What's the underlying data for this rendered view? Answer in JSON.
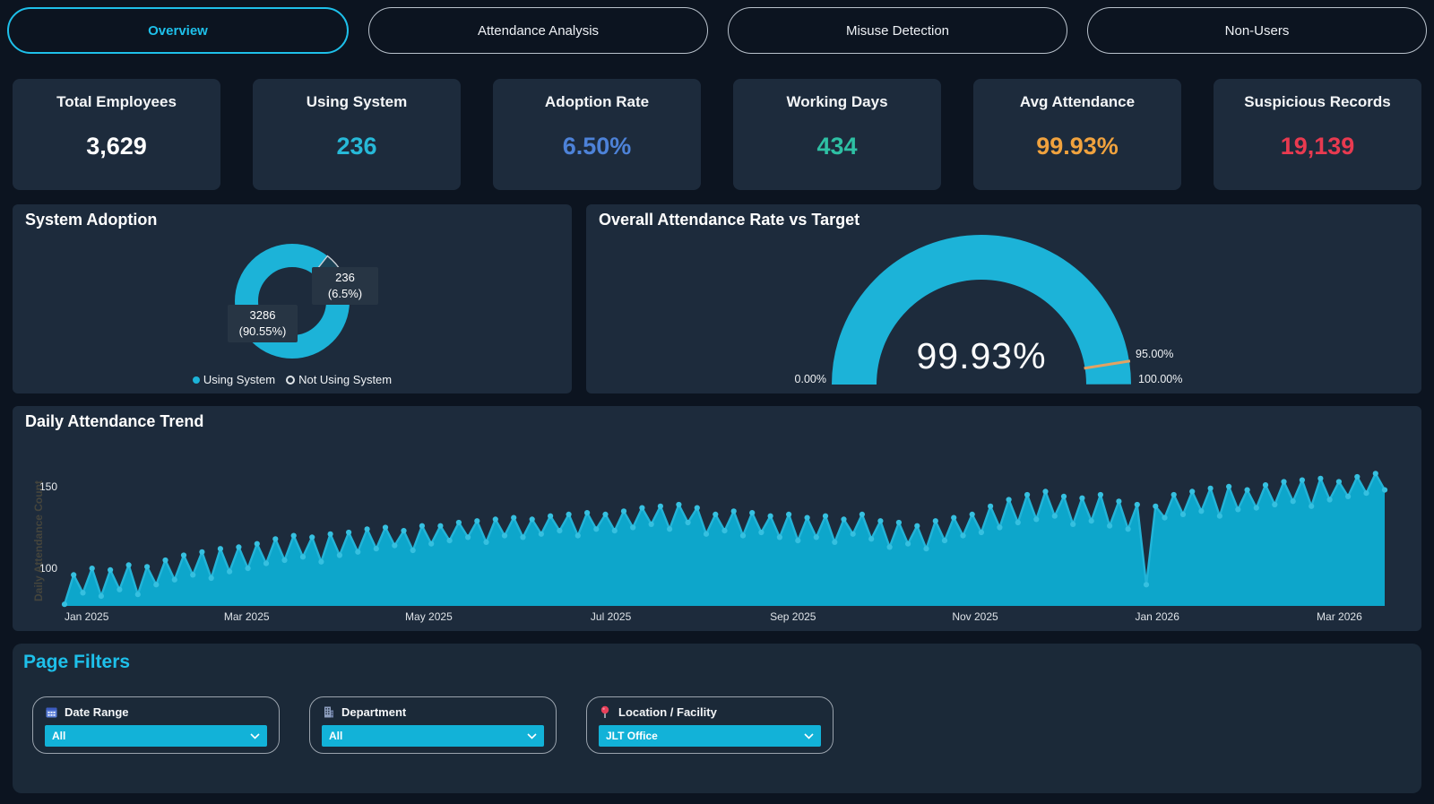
{
  "tabs": {
    "items": [
      {
        "label": "Overview",
        "active": true
      },
      {
        "label": "Attendance Analysis",
        "active": false
      },
      {
        "label": "Misuse Detection",
        "active": false
      },
      {
        "label": "Non-Users",
        "active": false
      }
    ]
  },
  "kpis": [
    {
      "title": "Total Employees",
      "value": "3,629",
      "color": "#ffffff"
    },
    {
      "title": "Using System",
      "value": "236",
      "color": "#27b9d8"
    },
    {
      "title": "Adoption Rate",
      "value": "6.50%",
      "color": "#4d82d8"
    },
    {
      "title": "Working Days",
      "value": "434",
      "color": "#2ec0a4"
    },
    {
      "title": "Avg Attendance",
      "value": "99.93%",
      "color": "#f0a23e"
    },
    {
      "title": "Suspicious Records",
      "value": "19,139",
      "color": "#e83a50"
    }
  ],
  "adoption": {
    "labels": {
      "using": {
        "line1": "236",
        "line2": "(6.5%)"
      },
      "not_using": {
        "line1": "3286",
        "line2": "(90.55%)"
      }
    },
    "legend": [
      {
        "label": "Using System",
        "marker": "filled"
      },
      {
        "label": "Not Using System",
        "marker": "hollow"
      }
    ]
  },
  "gauge": {
    "value_label": "99.93%",
    "min_label": "0.00%",
    "target_label": "95.00%",
    "max_label": "100.00%"
  },
  "trend": {
    "y_axis_title": "Daily Attendance Count"
  },
  "filters": {
    "heading": "Page Filters",
    "items": [
      {
        "icon": "calendar-icon",
        "label": "Date Range",
        "value": "All"
      },
      {
        "icon": "building-icon",
        "label": "Department",
        "value": "All"
      },
      {
        "icon": "pin-icon",
        "label": "Location / Facility",
        "value": "JLT Office"
      }
    ]
  },
  "colors": {
    "accent_cyan": "#1cb3d8",
    "area_fill": "#0da6cb",
    "line_stroke": "#22b4d8",
    "marker": "#36c0e0",
    "slice_dark": "#1d4255",
    "slice_separator": "#c9ced4",
    "gauge_track": "#253243",
    "target_orange": "#e2a263",
    "tick_text": "#e8ebee",
    "xlabel_text": "#dde2e7"
  },
  "chart_data": [
    {
      "type": "pie",
      "title": "System Adoption",
      "labels": [
        "Using System",
        "Not Using System"
      ],
      "values": [
        236,
        3286
      ],
      "display_values": [
        "236 (6.5%)",
        "3286 (90.55%)"
      ],
      "donut": true,
      "small_slice_start_deg": 38,
      "small_slice_end_deg": 66,
      "legend_position": "bottom"
    },
    {
      "type": "gauge",
      "title": "Overall Attendance Rate vs Target",
      "value": 99.93,
      "min": 0,
      "max": 100,
      "target": 95,
      "unit": "%"
    },
    {
      "type": "area",
      "title": "Daily Attendance Trend",
      "xlabel": "",
      "ylabel": "Daily Attendance Count",
      "x_tick_labels": [
        "Jan 2025",
        "Mar 2025",
        "May 2025",
        "Jul 2025",
        "Sep 2025",
        "Nov 2025",
        "Jan 2026",
        "Mar 2026"
      ],
      "yticks": [
        100,
        150
      ],
      "ylim": [
        77,
        173
      ],
      "grid": false,
      "values": [
        78,
        96,
        85,
        100,
        83,
        99,
        87,
        102,
        84,
        101,
        90,
        105,
        93,
        108,
        96,
        110,
        94,
        112,
        98,
        113,
        100,
        115,
        103,
        118,
        105,
        120,
        107,
        119,
        104,
        121,
        108,
        122,
        110,
        124,
        112,
        125,
        114,
        123,
        111,
        126,
        115,
        126,
        117,
        128,
        119,
        129,
        116,
        130,
        120,
        131,
        119,
        130,
        121,
        132,
        123,
        133,
        120,
        134,
        124,
        133,
        123,
        135,
        125,
        137,
        127,
        138,
        124,
        139,
        128,
        137,
        121,
        133,
        123,
        135,
        120,
        134,
        122,
        132,
        119,
        133,
        117,
        131,
        119,
        132,
        116,
        130,
        121,
        133,
        118,
        129,
        113,
        128,
        115,
        126,
        112,
        129,
        117,
        131,
        120,
        133,
        122,
        138,
        125,
        142,
        128,
        145,
        130,
        147,
        132,
        144,
        127,
        143,
        129,
        145,
        126,
        141,
        124,
        139,
        90,
        138,
        131,
        145,
        133,
        147,
        135,
        149,
        132,
        150,
        136,
        148,
        137,
        151,
        139,
        153,
        141,
        154,
        138,
        155,
        142,
        153,
        144,
        156,
        146,
        158,
        148
      ]
    }
  ]
}
